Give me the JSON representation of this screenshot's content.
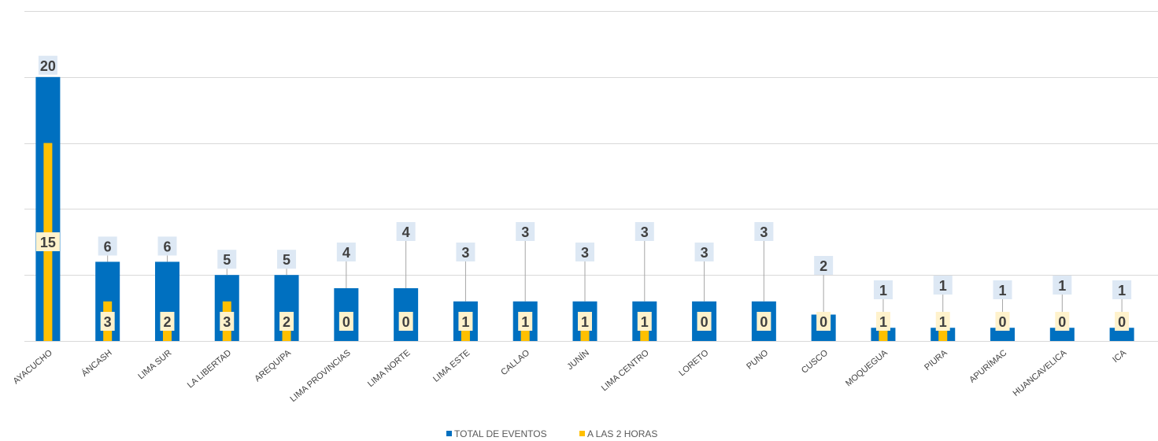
{
  "chart_data": {
    "type": "bar",
    "title": "",
    "xlabel": "",
    "ylabel": "",
    "ylim": [
      0,
      25
    ],
    "grid": true,
    "legend_position": "bottom",
    "categories": [
      "AYACUCHO",
      "ÁNCASH",
      "LIMA SUR",
      "LA LIBERTAD",
      "AREQUIPA",
      "LIMA PROVINCIAS",
      "LIMA NORTE",
      "LIMA ESTE",
      "CALLAO",
      "JUNÍN",
      "LIMA CENTRO",
      "LORETO",
      "PUNO",
      "CUSCO",
      "MOQUEGUA",
      "PIURA",
      "APURÍMAC",
      "HUANCAVELICA",
      "ICA"
    ],
    "series": [
      {
        "name": "TOTAL DE EVENTOS",
        "color": "#0070c0",
        "values": [
          20,
          6,
          6,
          5,
          5,
          4,
          4,
          3,
          3,
          3,
          3,
          3,
          3,
          2,
          1,
          1,
          1,
          1,
          1
        ]
      },
      {
        "name": "A LAS 2 HORAS",
        "color": "#ffc000",
        "values": [
          15,
          3,
          2,
          3,
          2,
          0,
          0,
          1,
          1,
          1,
          1,
          0,
          0,
          0,
          1,
          1,
          0,
          0,
          0
        ]
      }
    ]
  }
}
